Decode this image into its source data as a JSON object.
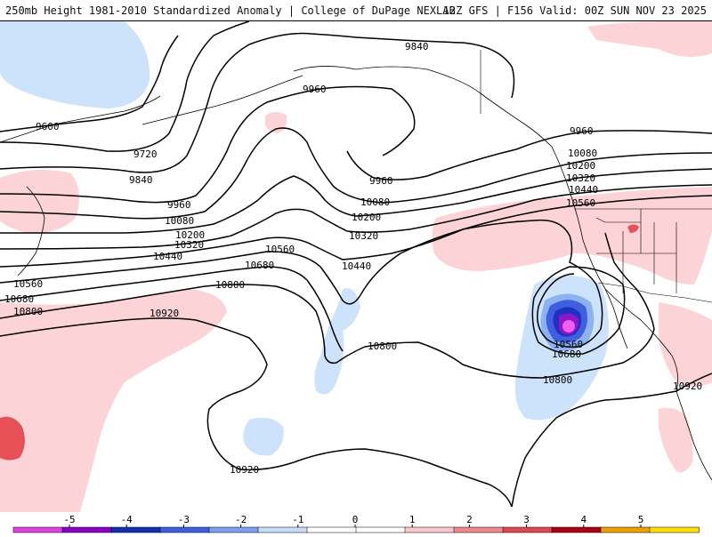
{
  "header": {
    "title": "250mb Height 1981-2010 Standardized Anomaly | College of DuPage NEXLAB",
    "run_info": "12Z GFS | F156 Valid: 00Z SUN NOV 23 2025"
  },
  "contours": {
    "line_color": "#000000",
    "labels": [
      {
        "text": "9840"
      },
      {
        "text": "9960"
      },
      {
        "text": "9600"
      },
      {
        "text": "9720"
      },
      {
        "text": "9840"
      },
      {
        "text": "9960"
      },
      {
        "text": "10080"
      },
      {
        "text": "10200"
      },
      {
        "text": "10320"
      },
      {
        "text": "10440"
      },
      {
        "text": "10560"
      },
      {
        "text": "10680"
      },
      {
        "text": "10800"
      },
      {
        "text": "10920"
      },
      {
        "text": "10560"
      },
      {
        "text": "10680"
      },
      {
        "text": "10800"
      },
      {
        "text": "10080"
      },
      {
        "text": "10200"
      },
      {
        "text": "10320"
      },
      {
        "text": "10440"
      },
      {
        "text": "10560"
      },
      {
        "text": "9960"
      },
      {
        "text": "10080"
      },
      {
        "text": "10200"
      },
      {
        "text": "10320"
      },
      {
        "text": "10440"
      },
      {
        "text": "10560"
      },
      {
        "text": "9960"
      },
      {
        "text": "10800"
      },
      {
        "text": "10560"
      },
      {
        "text": "10680"
      },
      {
        "text": "10800"
      },
      {
        "text": "10920"
      },
      {
        "text": "10920"
      }
    ]
  },
  "colorbar": {
    "tick_labels": [
      "-5",
      "-4",
      "-3",
      "-2",
      "-1",
      "0",
      "1",
      "2",
      "3",
      "4",
      "5"
    ],
    "colors": [
      "#e040e0",
      "#8a00c8",
      "#1030b0",
      "#3c5ee0",
      "#7aa0f0",
      "#c8dcfa",
      "#ffffff",
      "#ffffff",
      "#fac8cc",
      "#f08890",
      "#e04850",
      "#b00010",
      "#f0a000",
      "#ffe000"
    ]
  },
  "anomaly_colors": {
    "positive_light": "#fcd3d6",
    "positive_mid": "#f5989e",
    "positive_strong": "#e85058",
    "negative_light": "#cde2fb",
    "negative_mid": "#8db2f2",
    "negative_strong": "#3f5fe0",
    "negative_deeper": "#2030c0",
    "negative_deepest": "#8a18c8",
    "negative_extreme": "#f060f0"
  }
}
